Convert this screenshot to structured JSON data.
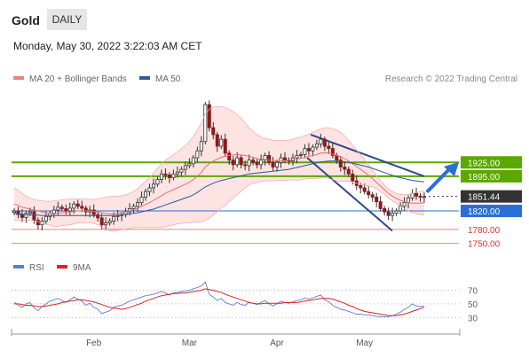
{
  "header": {
    "symbol": "Gold",
    "timeframe": "DAILY"
  },
  "datetime": "Monday, May 30, 2022 3:22:03 AM CET",
  "legend": [
    {
      "label": "MA 20 + Bollinger Bands",
      "color": "#f08080"
    },
    {
      "label": "MA 50",
      "color": "#2a5a9a"
    }
  ],
  "credit": "Research © 2022 Trading Central",
  "rsi_legend": [
    {
      "label": "RSI",
      "color": "#5b7fd6"
    },
    {
      "label": "9MA",
      "color": "#dd2222"
    }
  ],
  "colors": {
    "resistance": "#5aa800",
    "pivot": "#2a6fd6",
    "support": "#e03030",
    "last": "#333333",
    "channel": "#2e4a8a"
  },
  "chart_data": [
    {
      "type": "candlestick",
      "x_labels": [
        "Feb",
        "Mar",
        "Apr",
        "May"
      ],
      "ylim": [
        1730,
        2075
      ],
      "levels": [
        {
          "value": 1925.0,
          "label": "1925.00",
          "kind": "resistance"
        },
        {
          "value": 1895.0,
          "label": "1895.00",
          "kind": "resistance"
        },
        {
          "value": 1851.44,
          "label": "1851.44",
          "kind": "last"
        },
        {
          "value": 1820.0,
          "label": "1820.00",
          "kind": "pivot"
        },
        {
          "value": 1780.0,
          "label": "1780.00",
          "kind": "support"
        },
        {
          "value": 1750.0,
          "label": "1750.00",
          "kind": "support"
        }
      ],
      "closes": [
        1820,
        1812,
        1806,
        1815,
        1818,
        1800,
        1790,
        1798,
        1808,
        1815,
        1822,
        1828,
        1825,
        1820,
        1826,
        1835,
        1830,
        1826,
        1818,
        1822,
        1812,
        1805,
        1790,
        1794,
        1798,
        1808,
        1810,
        1812,
        1818,
        1825,
        1830,
        1838,
        1850,
        1862,
        1870,
        1878,
        1888,
        1900,
        1898,
        1892,
        1900,
        1904,
        1910,
        1918,
        1922,
        1935,
        1950,
        1970,
        2050,
        2000,
        1985,
        1960,
        1975,
        1945,
        1930,
        1920,
        1935,
        1920,
        1918,
        1930,
        1925,
        1920,
        1930,
        1940,
        1925,
        1915,
        1925,
        1935,
        1930,
        1928,
        1935,
        1940,
        1942,
        1955,
        1950,
        1958,
        1965,
        1975,
        1960,
        1955,
        1940,
        1930,
        1915,
        1910,
        1900,
        1885,
        1875,
        1870,
        1862,
        1855,
        1850,
        1840,
        1825,
        1818,
        1810,
        1815,
        1820,
        1830,
        1838,
        1848,
        1858,
        1852,
        1850,
        1851
      ],
      "ma20": [
        1835,
        1832,
        1828,
        1826,
        1824,
        1822,
        1820,
        1818,
        1816,
        1815,
        1814,
        1815,
        1816,
        1817,
        1818,
        1819,
        1820,
        1820,
        1820,
        1820,
        1819,
        1818,
        1816,
        1815,
        1814,
        1814,
        1815,
        1816,
        1818,
        1820,
        1823,
        1826,
        1830,
        1834,
        1838,
        1843,
        1848,
        1853,
        1858,
        1862,
        1866,
        1870,
        1874,
        1878,
        1882,
        1888,
        1895,
        1903,
        1915,
        1922,
        1928,
        1932,
        1936,
        1938,
        1940,
        1941,
        1942,
        1941,
        1940,
        1938,
        1936,
        1933,
        1932,
        1931,
        1930,
        1929,
        1929,
        1929,
        1929,
        1930,
        1931,
        1932,
        1934,
        1936,
        1938,
        1940,
        1942,
        1945,
        1946,
        1945,
        1943,
        1940,
        1937,
        1933,
        1928,
        1922,
        1916,
        1910,
        1904,
        1897,
        1890,
        1882,
        1874,
        1866,
        1858,
        1852,
        1847,
        1843,
        1840,
        1838,
        1837,
        1837,
        1837,
        1838
      ],
      "bb_upper": [
        1870,
        1865,
        1858,
        1852,
        1848,
        1845,
        1843,
        1842,
        1841,
        1841,
        1842,
        1843,
        1844,
        1845,
        1846,
        1846,
        1846,
        1846,
        1846,
        1845,
        1845,
        1846,
        1848,
        1850,
        1851,
        1852,
        1852,
        1853,
        1855,
        1858,
        1862,
        1868,
        1876,
        1884,
        1892,
        1902,
        1912,
        1922,
        1930,
        1936,
        1942,
        1948,
        1955,
        1962,
        1970,
        1980,
        1995,
        2010,
        2030,
        2040,
        2045,
        2046,
        2046,
        2044,
        2040,
        2035,
        2028,
        2020,
        2010,
        2000,
        1992,
        1985,
        1980,
        1977,
        1975,
        1973,
        1972,
        1972,
        1972,
        1973,
        1975,
        1978,
        1980,
        1983,
        1986,
        1990,
        1994,
        1998,
        2000,
        2000,
        1998,
        1995,
        1990,
        1982,
        1972,
        1962,
        1952,
        1942,
        1932,
        1920,
        1908,
        1896,
        1886,
        1876,
        1868,
        1862,
        1858,
        1856,
        1855,
        1856,
        1858,
        1860,
        1862,
        1864
      ],
      "bb_lower": [
        1800,
        1799,
        1798,
        1799,
        1800,
        1799,
        1797,
        1794,
        1791,
        1789,
        1786,
        1787,
        1788,
        1789,
        1790,
        1792,
        1794,
        1794,
        1794,
        1795,
        1793,
        1790,
        1784,
        1780,
        1777,
        1776,
        1778,
        1779,
        1781,
        1782,
        1784,
        1784,
        1784,
        1784,
        1784,
        1784,
        1784,
        1784,
        1786,
        1788,
        1790,
        1792,
        1793,
        1794,
        1794,
        1796,
        1795,
        1796,
        1800,
        1804,
        1811,
        1818,
        1826,
        1832,
        1840,
        1847,
        1856,
        1862,
        1870,
        1876,
        1880,
        1881,
        1884,
        1885,
        1885,
        1885,
        1886,
        1886,
        1886,
        1887,
        1887,
        1886,
        1888,
        1889,
        1890,
        1890,
        1890,
        1892,
        1892,
        1890,
        1888,
        1885,
        1884,
        1884,
        1884,
        1882,
        1880,
        1878,
        1876,
        1874,
        1872,
        1868,
        1862,
        1856,
        1848,
        1842,
        1836,
        1830,
        1825,
        1820,
        1816,
        1814,
        1812,
        1812
      ],
      "ma50": [
        1815,
        1814,
        1813,
        1812,
        1812,
        1811,
        1811,
        1810,
        1810,
        1810,
        1810,
        1810,
        1810,
        1810,
        1810,
        1810,
        1810,
        1810,
        1810,
        1810,
        1810,
        1810,
        1810,
        1810,
        1810,
        1810,
        1811,
        1812,
        1813,
        1814,
        1815,
        1816,
        1818,
        1820,
        1822,
        1824,
        1827,
        1830,
        1833,
        1836,
        1839,
        1842,
        1845,
        1848,
        1851,
        1855,
        1860,
        1866,
        1872,
        1876,
        1880,
        1883,
        1886,
        1888,
        1890,
        1892,
        1894,
        1896,
        1898,
        1900,
        1901,
        1902,
        1903,
        1904,
        1905,
        1906,
        1907,
        1908,
        1909,
        1910,
        1912,
        1914,
        1916,
        1918,
        1920,
        1922,
        1924,
        1926,
        1927,
        1928,
        1928,
        1928,
        1927,
        1926,
        1925,
        1923,
        1921,
        1919,
        1917,
        1915,
        1912,
        1909,
        1906,
        1903,
        1900,
        1897,
        1894,
        1892,
        1890,
        1888,
        1886,
        1885,
        1884,
        1883
      ]
    },
    {
      "type": "line",
      "ylim": [
        15,
        90
      ],
      "y_ticks": [
        "70",
        "50",
        "30"
      ],
      "series": [
        {
          "name": "RSI",
          "values": [
            52,
            48,
            45,
            50,
            52,
            44,
            40,
            46,
            50,
            54,
            56,
            58,
            55,
            52,
            56,
            60,
            57,
            54,
            48,
            51,
            45,
            42,
            36,
            38,
            40,
            45,
            47,
            48,
            51,
            54,
            56,
            58,
            60,
            62,
            63,
            64,
            66,
            68,
            66,
            63,
            66,
            67,
            68,
            69,
            70,
            72,
            74,
            76,
            82,
            64,
            60,
            55,
            58,
            52,
            50,
            48,
            52,
            49,
            48,
            52,
            51,
            49,
            52,
            55,
            50,
            47,
            50,
            54,
            52,
            51,
            53,
            55,
            56,
            59,
            57,
            59,
            61,
            63,
            56,
            53,
            48,
            45,
            42,
            41,
            39,
            37,
            35,
            35,
            34,
            34,
            33,
            32,
            31,
            31,
            31,
            33,
            35,
            38,
            42,
            45,
            50,
            47,
            46,
            47
          ]
        },
        {
          "name": "9MA",
          "values": [
            50,
            50,
            49,
            48,
            48,
            47,
            46,
            46,
            47,
            48,
            49,
            50,
            52,
            53,
            54,
            55,
            56,
            56,
            55,
            54,
            53,
            51,
            49,
            47,
            45,
            44,
            43,
            42,
            43,
            45,
            47,
            49,
            51,
            54,
            56,
            58,
            60,
            62,
            63,
            64,
            65,
            65,
            66,
            66,
            67,
            68,
            69,
            70,
            72,
            71,
            70,
            68,
            67,
            64,
            62,
            60,
            58,
            56,
            54,
            52,
            51,
            50,
            50,
            51,
            51,
            51,
            51,
            51,
            52,
            52,
            52,
            52,
            53,
            54,
            55,
            56,
            57,
            58,
            58,
            58,
            57,
            55,
            53,
            51,
            48,
            46,
            43,
            41,
            39,
            38,
            37,
            36,
            35,
            34,
            33,
            33,
            33,
            34,
            35,
            37,
            39,
            41,
            43,
            45
          ]
        }
      ]
    }
  ]
}
